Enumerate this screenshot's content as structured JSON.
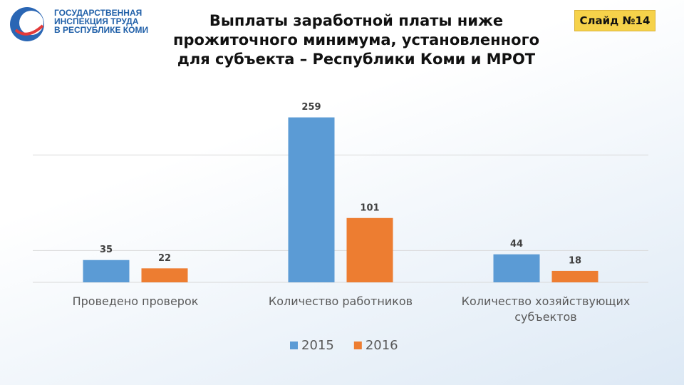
{
  "header": {
    "logo_lines": [
      "ГОСУДАРСТВЕННАЯ",
      "ИНСПЕКЦИЯ ТРУДА",
      "В РЕСПУБЛИКЕ КОМИ"
    ],
    "title": "Выплаты  заработной платы ниже прожиточного минимума, установленного для субъекта – Республики Коми и  МРОТ",
    "slide": "Слайд №14"
  },
  "chart_data": {
    "type": "bar",
    "categories": [
      "Проведено проверок",
      "Количество работников",
      "Количество хозяйствующих субъектов"
    ],
    "series": [
      {
        "name": "2015",
        "color": "#5b9bd5",
        "values": [
          35,
          259,
          44
        ]
      },
      {
        "name": "2016",
        "color": "#ed7d31",
        "values": [
          22,
          101,
          18
        ]
      }
    ],
    "ylim": [
      0,
      300
    ],
    "yticks": [
      0,
      50,
      200
    ],
    "grid": true,
    "legend": "bottom"
  }
}
